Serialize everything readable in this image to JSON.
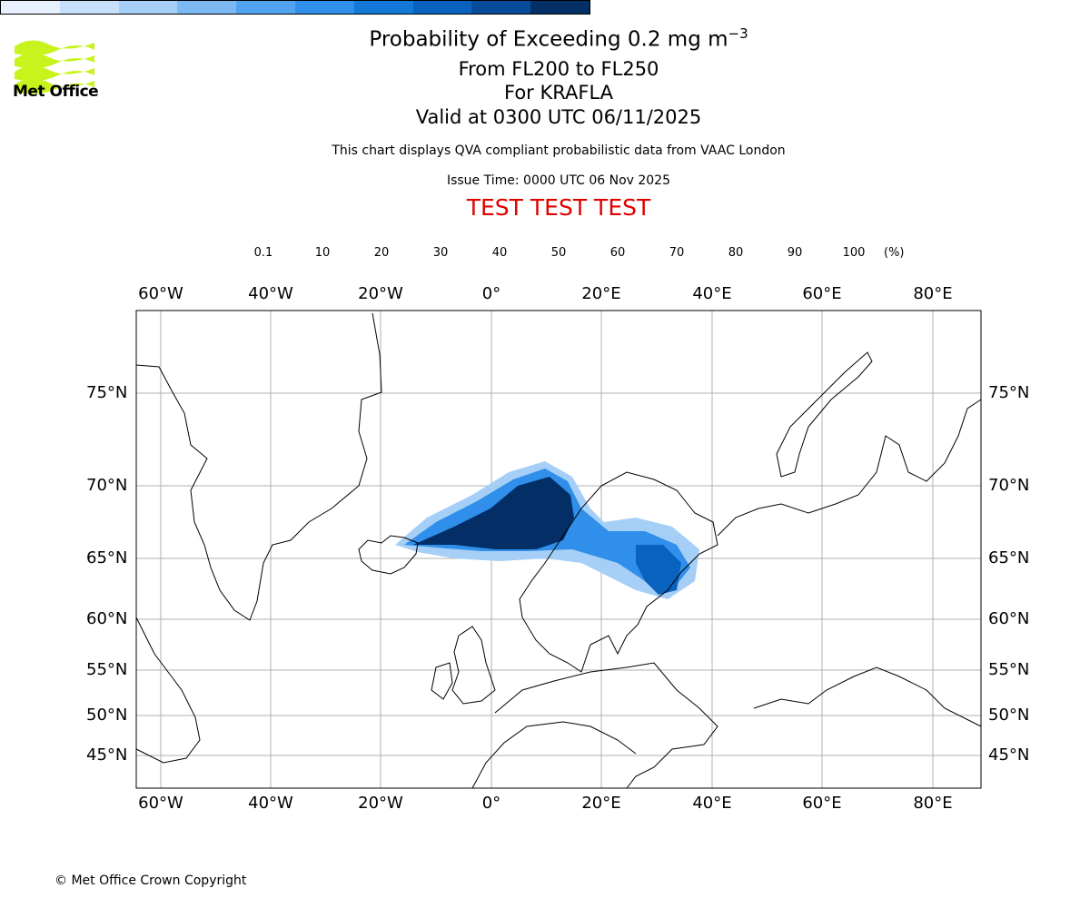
{
  "logo": {
    "text": "Met Office",
    "color": "#c8f31d"
  },
  "title": {
    "main": "Probability of Exceeding 0.2 mg m",
    "main_exponent": "−3",
    "level_range": "From FL200 to FL250",
    "volcano": "For KRAFLA",
    "valid_time": "Valid at 0300 UTC 06/11/2025"
  },
  "source_note": "This chart displays QVA compliant probabilistic data from VAAC London",
  "issue_time": "Issue Time: 0000 UTC 06 Nov 2025",
  "test_banner": "TEST TEST TEST",
  "colorbar": {
    "ticks": [
      "0.1",
      "10",
      "20",
      "30",
      "40",
      "50",
      "60",
      "70",
      "80",
      "90",
      "100"
    ],
    "units": "(%)",
    "colors": [
      "#e8f2fe",
      "#c6e0fb",
      "#a6cff7",
      "#7cb9f3",
      "#52a3ef",
      "#2f8fea",
      "#1378d8",
      "#0a62bf",
      "#074c9a",
      "#042e66"
    ]
  },
  "map": {
    "lon_labels": [
      "60°W",
      "40°W",
      "20°W",
      "0°",
      "20°E",
      "40°E",
      "60°E",
      "80°E"
    ],
    "lat_labels": [
      "75°N",
      "70°N",
      "65°N",
      "60°N",
      "55°N",
      "50°N",
      "45°N"
    ]
  },
  "footer": "© Met Office Crown Copyright"
}
